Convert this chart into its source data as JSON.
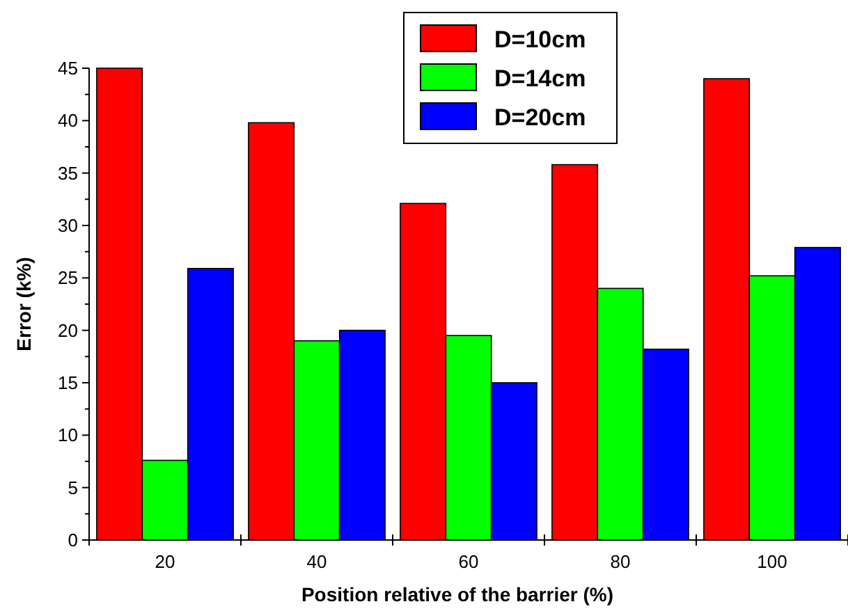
{
  "chart_data": {
    "type": "bar",
    "xlabel": "Position relative of the barrier (%)",
    "ylabel": "Error (k%)",
    "categories": [
      "20",
      "40",
      "60",
      "80",
      "100"
    ],
    "series": [
      {
        "name": "D=10cm",
        "color": "#ff0000",
        "values": [
          45,
          39.8,
          32.1,
          35.8,
          44.0
        ]
      },
      {
        "name": "D=14cm",
        "color": "#00ff00",
        "values": [
          7.6,
          19.0,
          19.5,
          24.0,
          25.2
        ]
      },
      {
        "name": "D=20cm",
        "color": "#0000ff",
        "values": [
          25.9,
          20.0,
          15.0,
          18.2,
          27.9
        ]
      }
    ],
    "ylim": [
      0,
      45
    ],
    "yticks": [
      0,
      5,
      10,
      15,
      20,
      25,
      30,
      35,
      40,
      45
    ],
    "grid": false,
    "legend": "top"
  }
}
